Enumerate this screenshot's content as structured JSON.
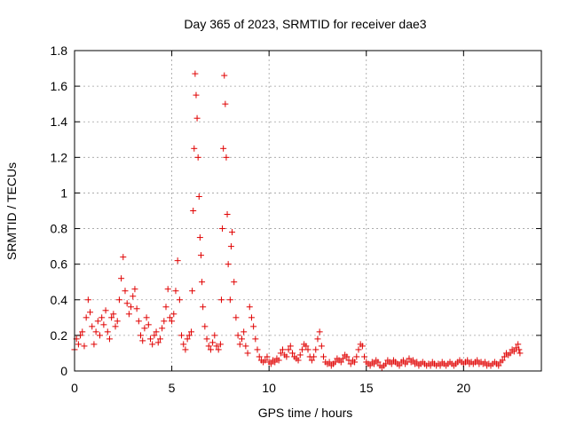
{
  "chart_data": {
    "type": "scatter",
    "title": "Day 365 of 2023, SRMTID for receiver dae3",
    "xlabel": "GPS time / hours",
    "ylabel": "SRMTID / TECUs",
    "xlim": [
      0,
      24
    ],
    "ylim": [
      0,
      1.8
    ],
    "xticks": [
      0,
      5,
      10,
      15,
      20
    ],
    "xtick_labels": [
      "0",
      "5",
      "10",
      "15",
      "20"
    ],
    "yticks": [
      0,
      0.2,
      0.4,
      0.6,
      0.8,
      1,
      1.2,
      1.4,
      1.6,
      1.8
    ],
    "ytick_labels": [
      "0",
      "0.2",
      "0.4",
      "0.6",
      "0.8",
      "1",
      "1.2",
      "1.4",
      "1.6",
      "1.8"
    ],
    "grid": true,
    "marker": "+",
    "marker_color": "#e00000",
    "series": [
      {
        "name": "dae3",
        "points": [
          [
            0.0,
            0.12
          ],
          [
            0.1,
            0.18
          ],
          [
            0.2,
            0.15
          ],
          [
            0.3,
            0.2
          ],
          [
            0.4,
            0.22
          ],
          [
            0.5,
            0.14
          ],
          [
            0.6,
            0.3
          ],
          [
            0.7,
            0.4
          ],
          [
            0.8,
            0.33
          ],
          [
            0.9,
            0.25
          ],
          [
            1.0,
            0.15
          ],
          [
            1.1,
            0.22
          ],
          [
            1.2,
            0.28
          ],
          [
            1.3,
            0.2
          ],
          [
            1.4,
            0.3
          ],
          [
            1.5,
            0.26
          ],
          [
            1.6,
            0.34
          ],
          [
            1.7,
            0.22
          ],
          [
            1.8,
            0.18
          ],
          [
            1.9,
            0.3
          ],
          [
            2.0,
            0.32
          ],
          [
            2.1,
            0.25
          ],
          [
            2.2,
            0.28
          ],
          [
            2.3,
            0.4
          ],
          [
            2.4,
            0.52
          ],
          [
            2.5,
            0.64
          ],
          [
            2.6,
            0.45
          ],
          [
            2.7,
            0.38
          ],
          [
            2.8,
            0.32
          ],
          [
            2.9,
            0.36
          ],
          [
            3.0,
            0.42
          ],
          [
            3.1,
            0.46
          ],
          [
            3.2,
            0.35
          ],
          [
            3.3,
            0.28
          ],
          [
            3.4,
            0.2
          ],
          [
            3.5,
            0.17
          ],
          [
            3.6,
            0.24
          ],
          [
            3.7,
            0.3
          ],
          [
            3.8,
            0.26
          ],
          [
            3.9,
            0.18
          ],
          [
            4.0,
            0.15
          ],
          [
            4.1,
            0.2
          ],
          [
            4.2,
            0.22
          ],
          [
            4.3,
            0.16
          ],
          [
            4.4,
            0.18
          ],
          [
            4.5,
            0.24
          ],
          [
            4.6,
            0.28
          ],
          [
            4.7,
            0.36
          ],
          [
            4.8,
            0.46
          ],
          [
            4.9,
            0.3
          ],
          [
            5.0,
            0.28
          ],
          [
            5.1,
            0.32
          ],
          [
            5.2,
            0.45
          ],
          [
            5.3,
            0.62
          ],
          [
            5.4,
            0.4
          ],
          [
            5.5,
            0.2
          ],
          [
            5.6,
            0.15
          ],
          [
            5.7,
            0.12
          ],
          [
            5.8,
            0.18
          ],
          [
            5.9,
            0.2
          ],
          [
            6.0,
            0.22
          ],
          [
            6.05,
            0.45
          ],
          [
            6.1,
            0.9
          ],
          [
            6.15,
            1.25
          ],
          [
            6.2,
            1.67
          ],
          [
            6.25,
            1.55
          ],
          [
            6.3,
            1.42
          ],
          [
            6.35,
            1.2
          ],
          [
            6.4,
            0.98
          ],
          [
            6.45,
            0.75
          ],
          [
            6.5,
            0.65
          ],
          [
            6.55,
            0.5
          ],
          [
            6.6,
            0.36
          ],
          [
            6.7,
            0.25
          ],
          [
            6.8,
            0.18
          ],
          [
            6.9,
            0.14
          ],
          [
            7.0,
            0.12
          ],
          [
            7.1,
            0.16
          ],
          [
            7.2,
            0.2
          ],
          [
            7.3,
            0.14
          ],
          [
            7.4,
            0.12
          ],
          [
            7.5,
            0.15
          ],
          [
            7.55,
            0.4
          ],
          [
            7.6,
            0.8
          ],
          [
            7.65,
            1.25
          ],
          [
            7.7,
            1.66
          ],
          [
            7.75,
            1.5
          ],
          [
            7.8,
            1.2
          ],
          [
            7.85,
            0.88
          ],
          [
            7.9,
            0.6
          ],
          [
            8.0,
            0.4
          ],
          [
            8.05,
            0.7
          ],
          [
            8.1,
            0.78
          ],
          [
            8.2,
            0.5
          ],
          [
            8.3,
            0.3
          ],
          [
            8.4,
            0.2
          ],
          [
            8.5,
            0.15
          ],
          [
            8.6,
            0.18
          ],
          [
            8.7,
            0.22
          ],
          [
            8.8,
            0.14
          ],
          [
            8.9,
            0.1
          ],
          [
            9.0,
            0.36
          ],
          [
            9.1,
            0.3
          ],
          [
            9.2,
            0.25
          ],
          [
            9.3,
            0.18
          ],
          [
            9.4,
            0.12
          ],
          [
            9.5,
            0.08
          ],
          [
            9.6,
            0.06
          ],
          [
            9.7,
            0.05
          ],
          [
            9.8,
            0.06
          ],
          [
            9.9,
            0.08
          ],
          [
            10.0,
            0.05
          ],
          [
            10.1,
            0.04
          ],
          [
            10.2,
            0.06
          ],
          [
            10.3,
            0.05
          ],
          [
            10.4,
            0.07
          ],
          [
            10.5,
            0.06
          ],
          [
            10.6,
            0.1
          ],
          [
            10.7,
            0.12
          ],
          [
            10.8,
            0.09
          ],
          [
            10.9,
            0.08
          ],
          [
            11.0,
            0.12
          ],
          [
            11.1,
            0.14
          ],
          [
            11.2,
            0.1
          ],
          [
            11.3,
            0.08
          ],
          [
            11.4,
            0.07
          ],
          [
            11.5,
            0.06
          ],
          [
            11.6,
            0.09
          ],
          [
            11.7,
            0.12
          ],
          [
            11.8,
            0.15
          ],
          [
            11.9,
            0.14
          ],
          [
            12.0,
            0.12
          ],
          [
            12.1,
            0.08
          ],
          [
            12.2,
            0.06
          ],
          [
            12.3,
            0.08
          ],
          [
            12.4,
            0.12
          ],
          [
            12.5,
            0.18
          ],
          [
            12.6,
            0.22
          ],
          [
            12.7,
            0.14
          ],
          [
            12.8,
            0.08
          ],
          [
            12.9,
            0.05
          ],
          [
            13.0,
            0.04
          ],
          [
            13.1,
            0.05
          ],
          [
            13.2,
            0.03
          ],
          [
            13.3,
            0.04
          ],
          [
            13.4,
            0.05
          ],
          [
            13.5,
            0.07
          ],
          [
            13.6,
            0.06
          ],
          [
            13.7,
            0.05
          ],
          [
            13.8,
            0.07
          ],
          [
            13.9,
            0.09
          ],
          [
            14.0,
            0.08
          ],
          [
            14.1,
            0.06
          ],
          [
            14.2,
            0.04
          ],
          [
            14.3,
            0.06
          ],
          [
            14.4,
            0.05
          ],
          [
            14.5,
            0.08
          ],
          [
            14.6,
            0.12
          ],
          [
            14.7,
            0.15
          ],
          [
            14.8,
            0.14
          ],
          [
            14.9,
            0.08
          ],
          [
            15.0,
            0.05
          ],
          [
            15.1,
            0.04
          ],
          [
            15.2,
            0.03
          ],
          [
            15.3,
            0.05
          ],
          [
            15.4,
            0.04
          ],
          [
            15.5,
            0.06
          ],
          [
            15.6,
            0.05
          ],
          [
            15.7,
            0.03
          ],
          [
            15.8,
            0.02
          ],
          [
            15.9,
            0.03
          ],
          [
            16.0,
            0.04
          ],
          [
            16.1,
            0.06
          ],
          [
            16.2,
            0.05
          ],
          [
            16.3,
            0.04
          ],
          [
            16.4,
            0.06
          ],
          [
            16.5,
            0.05
          ],
          [
            16.6,
            0.04
          ],
          [
            16.7,
            0.03
          ],
          [
            16.8,
            0.05
          ],
          [
            16.9,
            0.06
          ],
          [
            17.0,
            0.04
          ],
          [
            17.1,
            0.05
          ],
          [
            17.2,
            0.07
          ],
          [
            17.3,
            0.05
          ],
          [
            17.4,
            0.06
          ],
          [
            17.5,
            0.04
          ],
          [
            17.6,
            0.05
          ],
          [
            17.7,
            0.03
          ],
          [
            17.8,
            0.04
          ],
          [
            17.9,
            0.05
          ],
          [
            18.0,
            0.04
          ],
          [
            18.1,
            0.03
          ],
          [
            18.2,
            0.04
          ],
          [
            18.3,
            0.03
          ],
          [
            18.4,
            0.05
          ],
          [
            18.5,
            0.04
          ],
          [
            18.6,
            0.03
          ],
          [
            18.7,
            0.04
          ],
          [
            18.8,
            0.03
          ],
          [
            18.9,
            0.05
          ],
          [
            19.0,
            0.04
          ],
          [
            19.1,
            0.03
          ],
          [
            19.2,
            0.04
          ],
          [
            19.3,
            0.05
          ],
          [
            19.4,
            0.04
          ],
          [
            19.5,
            0.03
          ],
          [
            19.6,
            0.04
          ],
          [
            19.7,
            0.05
          ],
          [
            19.8,
            0.06
          ],
          [
            19.9,
            0.05
          ],
          [
            20.0,
            0.04
          ],
          [
            20.1,
            0.05
          ],
          [
            20.2,
            0.06
          ],
          [
            20.3,
            0.04
          ],
          [
            20.4,
            0.05
          ],
          [
            20.5,
            0.04
          ],
          [
            20.6,
            0.05
          ],
          [
            20.7,
            0.06
          ],
          [
            20.8,
            0.04
          ],
          [
            20.9,
            0.05
          ],
          [
            21.0,
            0.04
          ],
          [
            21.1,
            0.05
          ],
          [
            21.2,
            0.03
          ],
          [
            21.3,
            0.04
          ],
          [
            21.4,
            0.03
          ],
          [
            21.5,
            0.04
          ],
          [
            21.6,
            0.05
          ],
          [
            21.7,
            0.04
          ],
          [
            21.8,
            0.03
          ],
          [
            21.9,
            0.05
          ],
          [
            22.0,
            0.06
          ],
          [
            22.1,
            0.08
          ],
          [
            22.2,
            0.1
          ],
          [
            22.3,
            0.09
          ],
          [
            22.4,
            0.1
          ],
          [
            22.5,
            0.12
          ],
          [
            22.6,
            0.11
          ],
          [
            22.7,
            0.13
          ],
          [
            22.8,
            0.15
          ],
          [
            22.85,
            0.12
          ],
          [
            22.9,
            0.1
          ]
        ]
      }
    ]
  }
}
